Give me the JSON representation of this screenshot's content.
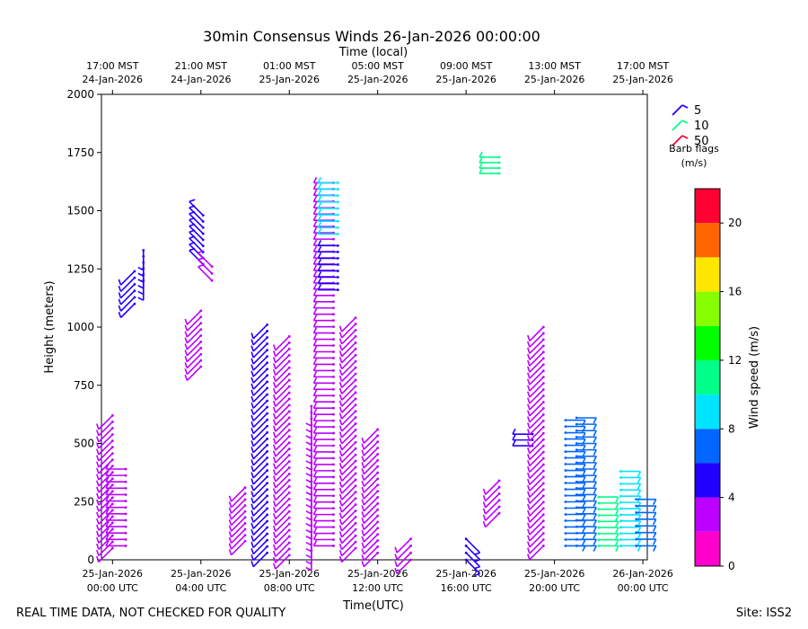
{
  "chart_data": {
    "type": "wind-barb-time-height",
    "title": "30min Consensus Winds 26-Jan-2026 00:00:00",
    "top_xlabel": "Time (local)",
    "xlabel": "Time(UTC)",
    "ylabel": "Height (meters)",
    "ylim": [
      0,
      2000
    ],
    "yticks": [
      "0",
      "250",
      "500",
      "750",
      "1000",
      "1250",
      "1500",
      "1750",
      "2000"
    ],
    "xlim_hours_utc": [
      -0.5,
      24.2
    ],
    "x_ticks_utc": [
      {
        "hour": 0,
        "line1": "25-Jan-2026",
        "line2": "00:00 UTC"
      },
      {
        "hour": 4,
        "line1": "25-Jan-2026",
        "line2": "04:00 UTC"
      },
      {
        "hour": 8,
        "line1": "25-Jan-2026",
        "line2": "08:00 UTC"
      },
      {
        "hour": 12,
        "line1": "25-Jan-2026",
        "line2": "12:00 UTC"
      },
      {
        "hour": 16,
        "line1": "25-Jan-2026",
        "line2": "16:00 UTC"
      },
      {
        "hour": 20,
        "line1": "25-Jan-2026",
        "line2": "20:00 UTC"
      },
      {
        "hour": 24,
        "line1": "26-Jan-2026",
        "line2": "00:00 UTC"
      }
    ],
    "x_ticks_local": [
      {
        "hour": 0,
        "line1": "17:00 MST",
        "line2": "24-Jan-2026"
      },
      {
        "hour": 4,
        "line1": "21:00 MST",
        "line2": "24-Jan-2026"
      },
      {
        "hour": 8,
        "line1": "01:00 MST",
        "line2": "25-Jan-2026"
      },
      {
        "hour": 12,
        "line1": "05:00 MST",
        "line2": "25-Jan-2026"
      },
      {
        "hour": 16,
        "line1": "09:00 MST",
        "line2": "25-Jan-2026"
      },
      {
        "hour": 20,
        "line1": "13:00 MST",
        "line2": "25-Jan-2026"
      },
      {
        "hour": 24,
        "line1": "17:00 MST",
        "line2": "25-Jan-2026"
      }
    ],
    "legend": {
      "title_line1": "Barb flags",
      "title_line2": "(m/s)",
      "entries": [
        {
          "label": "5",
          "color": "#2200ff"
        },
        {
          "label": "10",
          "color": "#00ff88"
        },
        {
          "label": "50",
          "color": "#ff0033"
        }
      ]
    },
    "colorbar": {
      "label": "Wind speed (m/s)",
      "range": [
        0,
        22
      ],
      "ticks": [
        "0",
        "4",
        "8",
        "12",
        "16",
        "20"
      ],
      "colors": [
        "#ff00cc",
        "#bb00ff",
        "#2200ff",
        "#0066ff",
        "#00e5ff",
        "#00ff88",
        "#00ff00",
        "#88ff00",
        "#ffe600",
        "#ff6600",
        "#ff0033"
      ]
    },
    "barbs": [
      {
        "name": "profile-h00",
        "hour": 0.0,
        "h0": 50,
        "h1": 620,
        "dir": "sw",
        "speed": 2
      },
      {
        "name": "profile-h00b",
        "hour": 0.6,
        "h0": 60,
        "h1": 390,
        "dir": "w",
        "speed": 2
      },
      {
        "name": "profile-h01",
        "hour": 1.0,
        "h0": 1100,
        "h1": 1240,
        "dir": "sw",
        "speed": 4
      },
      {
        "name": "profile-h01b",
        "hour": 1.4,
        "h0": 1200,
        "h1": 1330,
        "dir": "s",
        "speed": 4
      },
      {
        "name": "profile-h04",
        "hour": 4.0,
        "h0": 830,
        "h1": 1070,
        "dir": "sw",
        "speed": 3
      },
      {
        "name": "profile-h04b",
        "hour": 4.1,
        "h0": 1270,
        "h1": 1480,
        "dir": "nw",
        "speed": 4
      },
      {
        "name": "profile-h04c",
        "hour": 4.5,
        "h0": 1200,
        "h1": 1260,
        "dir": "nw",
        "speed": 2
      },
      {
        "name": "profile-h06",
        "hour": 6.0,
        "h0": 80,
        "h1": 310,
        "dir": "sw",
        "speed": 3
      },
      {
        "name": "profile-h07",
        "hour": 7.0,
        "h0": 30,
        "h1": 1010,
        "dir": "sw",
        "speed": 4
      },
      {
        "name": "profile-h08",
        "hour": 8.0,
        "h0": 20,
        "h1": 960,
        "dir": "sw",
        "speed": 3
      },
      {
        "name": "profile-h09",
        "hour": 9.0,
        "h0": 40,
        "h1": 660,
        "dir": "s",
        "speed": 3
      },
      {
        "name": "profile-h10",
        "hour": 10.0,
        "h0": 60,
        "h1": 1620,
        "dir": "w",
        "speed": 3
      },
      {
        "name": "profile-h10b",
        "hour": 10.2,
        "h0": 1400,
        "h1": 1620,
        "dir": "w",
        "speed": 9
      },
      {
        "name": "profile-h10c",
        "hour": 10.2,
        "h0": 1160,
        "h1": 1350,
        "dir": "w",
        "speed": 4
      },
      {
        "name": "profile-h11",
        "hour": 11.0,
        "h0": 50,
        "h1": 1040,
        "dir": "sw",
        "speed": 3
      },
      {
        "name": "profile-h12",
        "hour": 12.0,
        "h0": 30,
        "h1": 560,
        "dir": "sw",
        "speed": 3
      },
      {
        "name": "profile-h13",
        "hour": 13.5,
        "h0": 0,
        "h1": 90,
        "dir": "sw",
        "speed": 3
      },
      {
        "name": "profile-h16",
        "hour": 16.0,
        "h0": 0,
        "h1": 90,
        "dir": "se",
        "speed": 4
      },
      {
        "name": "profile-h17",
        "hour": 17.5,
        "h0": 1660,
        "h1": 1730,
        "dir": "w",
        "speed": 10
      },
      {
        "name": "profile-h175",
        "hour": 17.5,
        "h0": 200,
        "h1": 340,
        "dir": "sw",
        "speed": 3
      },
      {
        "name": "profile-h19",
        "hour": 19.0,
        "h0": 490,
        "h1": 540,
        "dir": "w",
        "speed": 4
      },
      {
        "name": "profile-h19b",
        "hour": 19.5,
        "h0": 60,
        "h1": 1000,
        "dir": "sw",
        "speed": 3
      },
      {
        "name": "profile-h20",
        "hour": 20.5,
        "h0": 60,
        "h1": 600,
        "dir": "e",
        "speed": 6
      },
      {
        "name": "profile-h21",
        "hour": 21.0,
        "h0": 60,
        "h1": 610,
        "dir": "e",
        "speed": 6
      },
      {
        "name": "profile-h22",
        "hour": 22.0,
        "h0": 60,
        "h1": 270,
        "dir": "e",
        "speed": 10
      },
      {
        "name": "profile-h23",
        "hour": 23.0,
        "h0": 60,
        "h1": 380,
        "dir": "e",
        "speed": 9
      },
      {
        "name": "profile-h235",
        "hour": 23.7,
        "h0": 60,
        "h1": 260,
        "dir": "e",
        "speed": 6
      }
    ]
  },
  "footer": {
    "left": "REAL TIME DATA, NOT CHECKED FOR QUALITY",
    "right": "Site: ISS2"
  }
}
